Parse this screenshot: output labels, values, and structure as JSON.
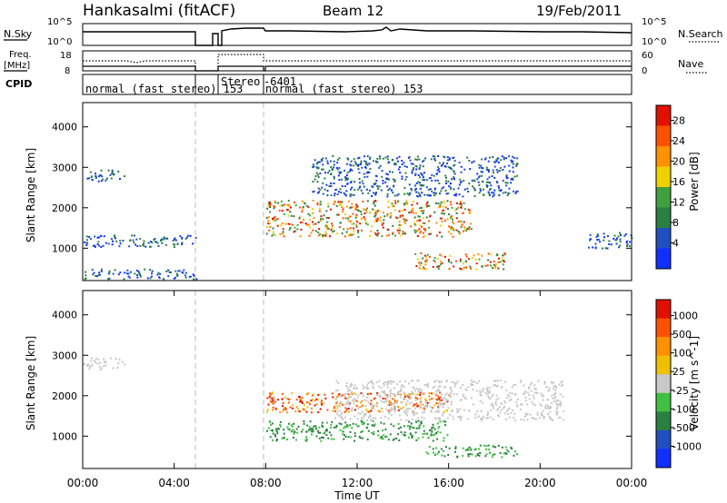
{
  "header": {
    "station": "Hankasalmi (fitACF)",
    "beam": "Beam 12",
    "date": "19/Feb/2011"
  },
  "panels": {
    "nsky_label": "N.Sky",
    "nsearch_label": "N.Search",
    "freq_label": "Freq.",
    "freq_unit": "[MHz]",
    "nave_label": "Nave",
    "cpid_label": "CPID",
    "nsky_ticks": [
      "10^5",
      "10^0"
    ],
    "nsearch_ticks": [
      "10^5",
      "10^0"
    ],
    "freq_ticks": [
      "18",
      "8"
    ],
    "nave_ticks": [
      "60",
      "0"
    ],
    "cpid_segments": [
      {
        "text": "normal (fast stereo) 153",
        "start": 0.0
      },
      {
        "text": "Stereo",
        "start": 5.2
      },
      {
        "text": "-6401",
        "start": 7.9
      },
      {
        "text": "normal (fast stereo) 153",
        "start": 8.0
      }
    ]
  },
  "chart_data": [
    {
      "type": "heatmap",
      "name": "power",
      "ylabel": "Slant Range [km]",
      "xlabel": "",
      "xlim": [
        0,
        24
      ],
      "ylim": [
        200,
        4600
      ],
      "yticks": [
        "1000",
        "2000",
        "3000",
        "4000"
      ],
      "colorbar": {
        "label": "Power [dB]",
        "ticks": [
          "28",
          "24",
          "20",
          "16",
          "12",
          "8",
          "4"
        ],
        "colors": [
          "#1030ff",
          "#2050c0",
          "#2a8040",
          "#40a040",
          "#f0d000",
          "#ff9000",
          "#ff5000",
          "#e01000"
        ]
      },
      "data_gap_hours": [
        5.0,
        8.0
      ],
      "regions": [
        {
          "x": [
            0.0,
            1.8
          ],
          "y": [
            2650,
            2950
          ],
          "level": "low"
        },
        {
          "x": [
            0.0,
            5.0
          ],
          "y": [
            1050,
            1350
          ],
          "level": "low"
        },
        {
          "x": [
            0.0,
            5.0
          ],
          "y": [
            250,
            500
          ],
          "level": "low"
        },
        {
          "x": [
            8.0,
            17.0
          ],
          "y": [
            1300,
            2200
          ],
          "level": "high"
        },
        {
          "x": [
            14.5,
            18.5
          ],
          "y": [
            500,
            900
          ],
          "level": "high"
        },
        {
          "x": [
            10.0,
            19.0
          ],
          "y": [
            2300,
            3300
          ],
          "level": "low"
        },
        {
          "x": [
            22.0,
            24.0
          ],
          "y": [
            1000,
            1400
          ],
          "level": "low"
        }
      ]
    },
    {
      "type": "heatmap",
      "name": "velocity",
      "ylabel": "Slant Range [km]",
      "xlabel": "Time UT",
      "xlim": [
        0,
        24
      ],
      "ylim": [
        200,
        4600
      ],
      "xticks": [
        "00:00",
        "04:00",
        "08:00",
        "12:00",
        "16:00",
        "20:00",
        "00:00"
      ],
      "yticks": [
        "1000",
        "2000",
        "3000",
        "4000"
      ],
      "colorbar": {
        "label": "Velocity [m s^-1]",
        "ticks": [
          "1000",
          "500",
          "100",
          "25",
          "-25",
          "-100",
          "-500",
          "-1000"
        ],
        "colors": [
          "#1030ff",
          "#2050c0",
          "#2a8040",
          "#40c040",
          "#c8c8c8",
          "#f0c000",
          "#ff9000",
          "#ff5000",
          "#e01000"
        ]
      },
      "data_gap_hours": [
        5.0,
        8.0
      ],
      "regions": [
        {
          "x": [
            0.0,
            1.8
          ],
          "y": [
            2650,
            2950
          ],
          "level": "ground"
        },
        {
          "x": [
            8.0,
            16.0
          ],
          "y": [
            1600,
            2100
          ],
          "level": "away"
        },
        {
          "x": [
            11.0,
            21.0
          ],
          "y": [
            1400,
            2400
          ],
          "level": "ground"
        },
        {
          "x": [
            15.0,
            19.0
          ],
          "y": [
            500,
            800
          ],
          "level": "toward"
        },
        {
          "x": [
            8.0,
            16.0
          ],
          "y": [
            900,
            1400
          ],
          "level": "toward"
        }
      ]
    }
  ]
}
